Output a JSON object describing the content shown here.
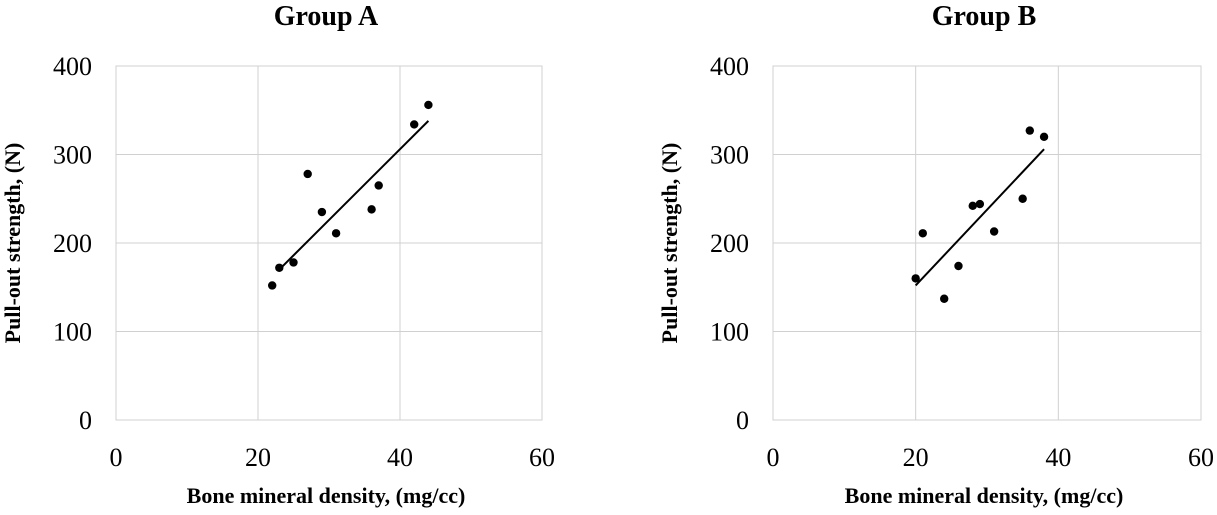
{
  "chart_data": [
    {
      "type": "scatter",
      "title": "Group A",
      "xlabel": "Bone mineral density, (mg/cc)",
      "ylabel": "Pull-out strength, (N)",
      "xlim": [
        0,
        60
      ],
      "ylim": [
        0,
        400
      ],
      "xticks": [
        "0",
        "20",
        "40",
        "60"
      ],
      "yticks": [
        "0",
        "100",
        "200",
        "300",
        "400"
      ],
      "grid": true,
      "series": [
        {
          "points": [
            [
              22,
              152
            ],
            [
              23,
              172
            ],
            [
              25,
              178
            ],
            [
              27,
              278
            ],
            [
              29,
              235
            ],
            [
              31,
              211
            ],
            [
              36,
              238
            ],
            [
              37,
              265
            ],
            [
              42,
              334
            ],
            [
              44,
              356
            ]
          ]
        }
      ],
      "trendline": [
        [
          23,
          170
        ],
        [
          44,
          338
        ]
      ]
    },
    {
      "type": "scatter",
      "title": "Group B",
      "xlabel": "Bone mineral density, (mg/cc)",
      "ylabel": "Pull-out strength, (N)",
      "xlim": [
        0,
        60
      ],
      "ylim": [
        0,
        400
      ],
      "xticks": [
        "0",
        "20",
        "40",
        "60"
      ],
      "yticks": [
        "0",
        "100",
        "200",
        "300",
        "400"
      ],
      "grid": true,
      "series": [
        {
          "points": [
            [
              20,
              160
            ],
            [
              21,
              211
            ],
            [
              24,
              137
            ],
            [
              26,
              174
            ],
            [
              28,
              242
            ],
            [
              29,
              244
            ],
            [
              31,
              213
            ],
            [
              35,
              250
            ],
            [
              36,
              327
            ],
            [
              38,
              320
            ]
          ]
        }
      ],
      "trendline": [
        [
          20,
          152
        ],
        [
          38,
          306
        ]
      ]
    }
  ]
}
